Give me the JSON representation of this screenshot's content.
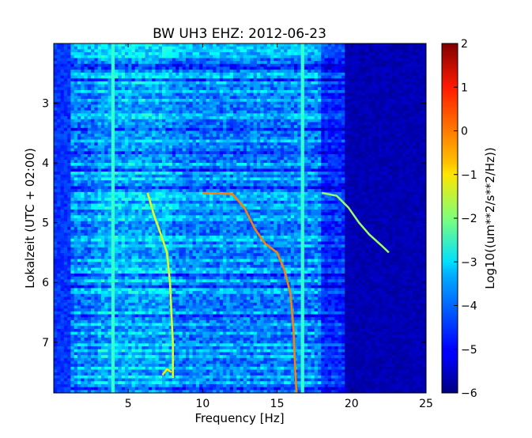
{
  "chart_data": {
    "type": "heatmap",
    "title": "BW UH3 EHZ: 2012-06-23",
    "xlabel": "Frequency [Hz]",
    "ylabel": "Lokalzeit (UTC + 02:00)",
    "colorbar_label": "Log10((um**2/s**2/Hz))",
    "xlim": [
      0,
      25
    ],
    "ylim": [
      7.85,
      2.0
    ],
    "x_ticks": [
      5,
      10,
      15,
      20,
      25
    ],
    "y_ticks": [
      3,
      4,
      5,
      6,
      7
    ],
    "color_range": [
      -6,
      2
    ],
    "colorbar_ticks": [
      2,
      1,
      0,
      -1,
      -2,
      -3,
      -4,
      -5,
      -6
    ],
    "colormap": "jet",
    "background_value": -4.5,
    "high_freq_value": -5.6,
    "lines": [
      {
        "value": -1.2,
        "points": [
          [
            6.3,
            4.5
          ],
          [
            6.7,
            4.85
          ],
          [
            7.2,
            5.2
          ],
          [
            7.6,
            5.5
          ],
          [
            7.8,
            6.0
          ],
          [
            7.9,
            6.5
          ],
          [
            8.0,
            7.0
          ],
          [
            8.0,
            7.6
          ]
        ]
      },
      {
        "value": 0.0,
        "points": [
          [
            10.0,
            4.5
          ],
          [
            12.0,
            4.52
          ],
          [
            12.8,
            4.75
          ],
          [
            13.5,
            5.1
          ],
          [
            14.2,
            5.35
          ],
          [
            15.0,
            5.5
          ],
          [
            15.5,
            5.8
          ],
          [
            15.9,
            6.2
          ],
          [
            16.1,
            6.8
          ],
          [
            16.2,
            7.4
          ],
          [
            16.3,
            7.85
          ]
        ]
      },
      {
        "value": -1.8,
        "points": [
          [
            18.0,
            4.5
          ],
          [
            19.0,
            4.55
          ],
          [
            19.8,
            4.75
          ],
          [
            20.5,
            5.0
          ],
          [
            21.2,
            5.2
          ],
          [
            22.0,
            5.38
          ],
          [
            22.5,
            5.5
          ]
        ]
      },
      {
        "value": -0.8,
        "points": [
          [
            7.3,
            7.55
          ],
          [
            7.6,
            7.45
          ],
          [
            7.9,
            7.5
          ]
        ]
      }
    ]
  }
}
